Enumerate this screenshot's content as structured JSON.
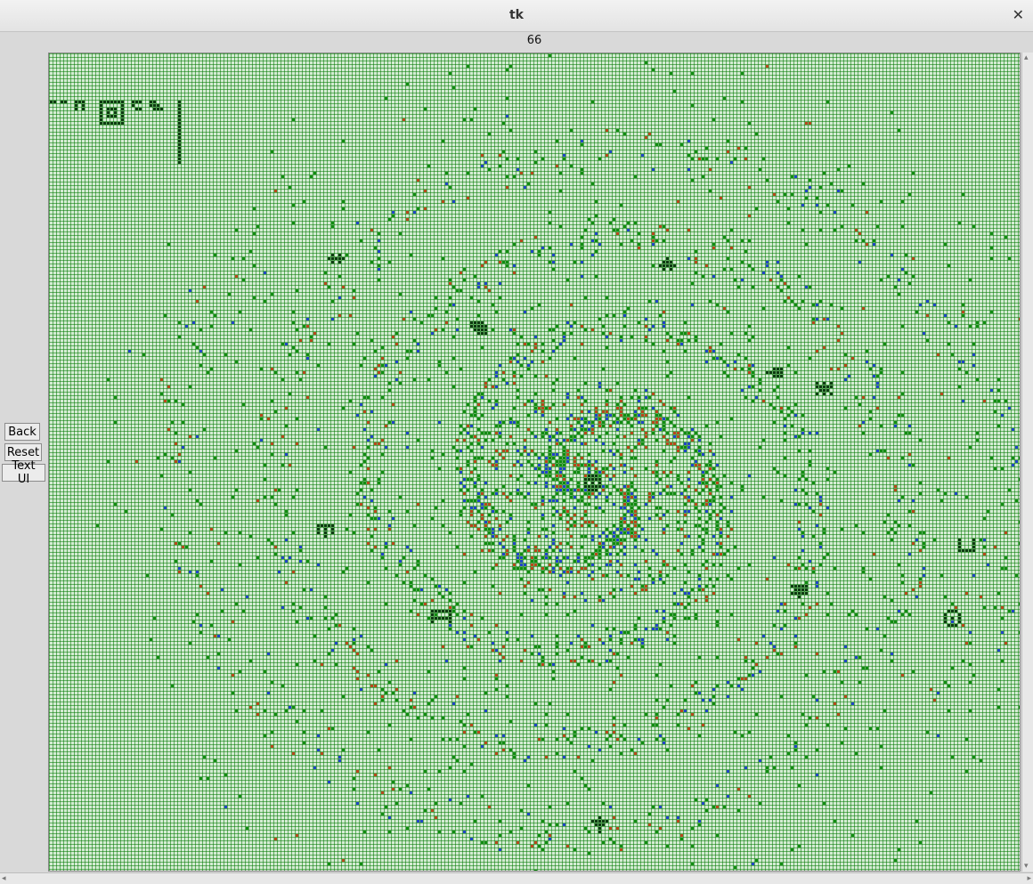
{
  "window": {
    "title": "tk",
    "close_glyph": "✕"
  },
  "simulation": {
    "generation": "66"
  },
  "sidebar": {
    "back_label": "Back",
    "reset_label": "Reset",
    "text_ui_label": "Text UI"
  },
  "grid": {
    "background_color": "#d4ecd3",
    "gridline_color": "#007800",
    "cell_colors": {
      "live_green": "#118c11",
      "blue": "#2144c8",
      "red": "#b8471c",
      "dark_pattern": "#0f3a12"
    }
  },
  "scrollbars": {
    "up_glyph": "▴",
    "down_glyph": "▾",
    "left_glyph": "◂",
    "right_glyph": "▸"
  }
}
